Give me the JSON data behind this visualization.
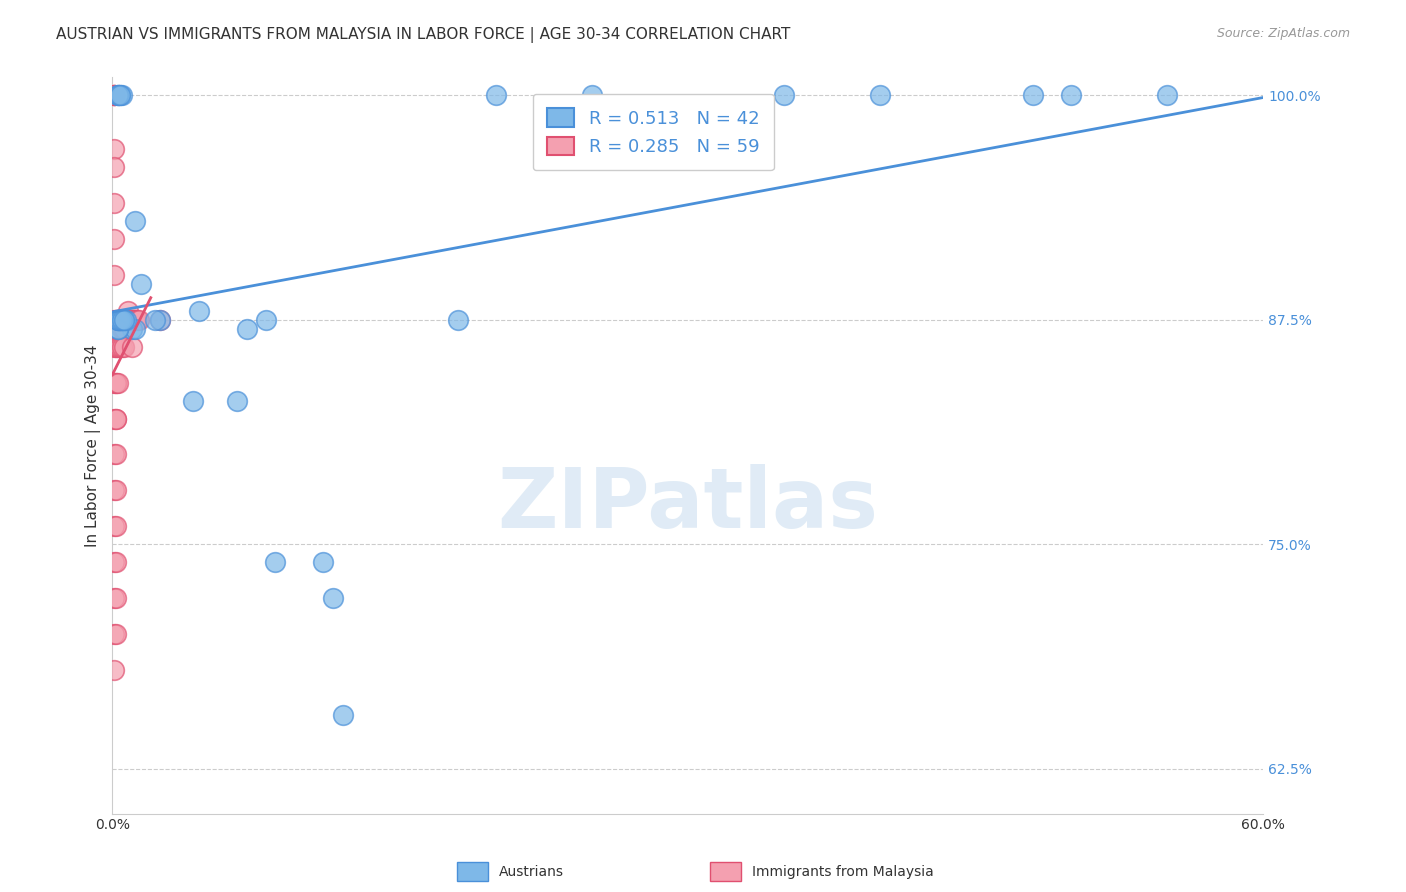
{
  "title": "AUSTRIAN VS IMMIGRANTS FROM MALAYSIA IN LABOR FORCE | AGE 30-34 CORRELATION CHART",
  "source": "Source: ZipAtlas.com",
  "ylabel": "In Labor Force | Age 30-34",
  "xlim": [
    0.0,
    0.6
  ],
  "ylim": [
    0.6,
    1.01
  ],
  "legend_blue_R": "0.513",
  "legend_blue_N": "42",
  "legend_pink_R": "0.285",
  "legend_pink_N": "59",
  "blue_color": "#7EB8E8",
  "pink_color": "#F4A0B0",
  "trendline_blue": "#4A90D9",
  "trendline_pink": "#E05070",
  "austrians_x": [
    0.003,
    0.004,
    0.003,
    0.005,
    0.003,
    0.004,
    0.012,
    0.015,
    0.01,
    0.012,
    0.025,
    0.022,
    0.045,
    0.042,
    0.065,
    0.07,
    0.08,
    0.085,
    0.11,
    0.115,
    0.12,
    0.18,
    0.2,
    0.25,
    0.35,
    0.4,
    0.48,
    0.5,
    0.55,
    0.003,
    0.004,
    0.003,
    0.003,
    0.003,
    0.004,
    0.005,
    0.006,
    0.007,
    0.003,
    0.004,
    0.005,
    0.006
  ],
  "austrians_y": [
    1.0,
    1.0,
    1.0,
    1.0,
    1.0,
    1.0,
    0.93,
    0.895,
    0.87,
    0.87,
    0.875,
    0.875,
    0.88,
    0.83,
    0.83,
    0.87,
    0.875,
    0.74,
    0.74,
    0.72,
    0.655,
    0.875,
    1.0,
    1.0,
    1.0,
    1.0,
    1.0,
    1.0,
    1.0,
    0.87,
    0.875,
    0.87,
    0.875,
    0.875,
    0.875,
    0.875,
    0.875,
    0.875,
    0.875,
    0.875,
    0.875,
    0.875
  ],
  "malaysia_x": [
    0.001,
    0.001,
    0.001,
    0.001,
    0.001,
    0.001,
    0.001,
    0.001,
    0.001,
    0.001,
    0.001,
    0.001,
    0.001,
    0.001,
    0.001,
    0.001,
    0.001,
    0.001,
    0.001,
    0.001,
    0.002,
    0.002,
    0.002,
    0.002,
    0.002,
    0.002,
    0.002,
    0.002,
    0.002,
    0.002,
    0.002,
    0.002,
    0.002,
    0.002,
    0.002,
    0.003,
    0.003,
    0.003,
    0.003,
    0.003,
    0.004,
    0.004,
    0.004,
    0.005,
    0.005,
    0.005,
    0.006,
    0.006,
    0.006,
    0.007,
    0.008,
    0.009,
    0.01,
    0.01,
    0.011,
    0.012,
    0.013,
    0.014,
    0.025
  ],
  "malaysia_y": [
    1.0,
    1.0,
    1.0,
    1.0,
    0.97,
    0.96,
    0.94,
    0.92,
    0.9,
    0.875,
    0.86,
    0.84,
    0.82,
    0.8,
    0.78,
    0.76,
    0.74,
    0.72,
    0.7,
    0.68,
    0.875,
    0.86,
    0.84,
    0.82,
    0.8,
    0.78,
    0.76,
    0.74,
    0.72,
    0.7,
    0.875,
    0.86,
    0.84,
    0.82,
    0.875,
    0.875,
    0.86,
    0.84,
    0.875,
    0.875,
    0.875,
    0.86,
    0.875,
    0.875,
    0.87,
    0.86,
    0.875,
    0.87,
    0.86,
    0.875,
    0.88,
    0.875,
    0.875,
    0.86,
    0.875,
    0.875,
    0.875,
    0.875,
    0.875
  ]
}
